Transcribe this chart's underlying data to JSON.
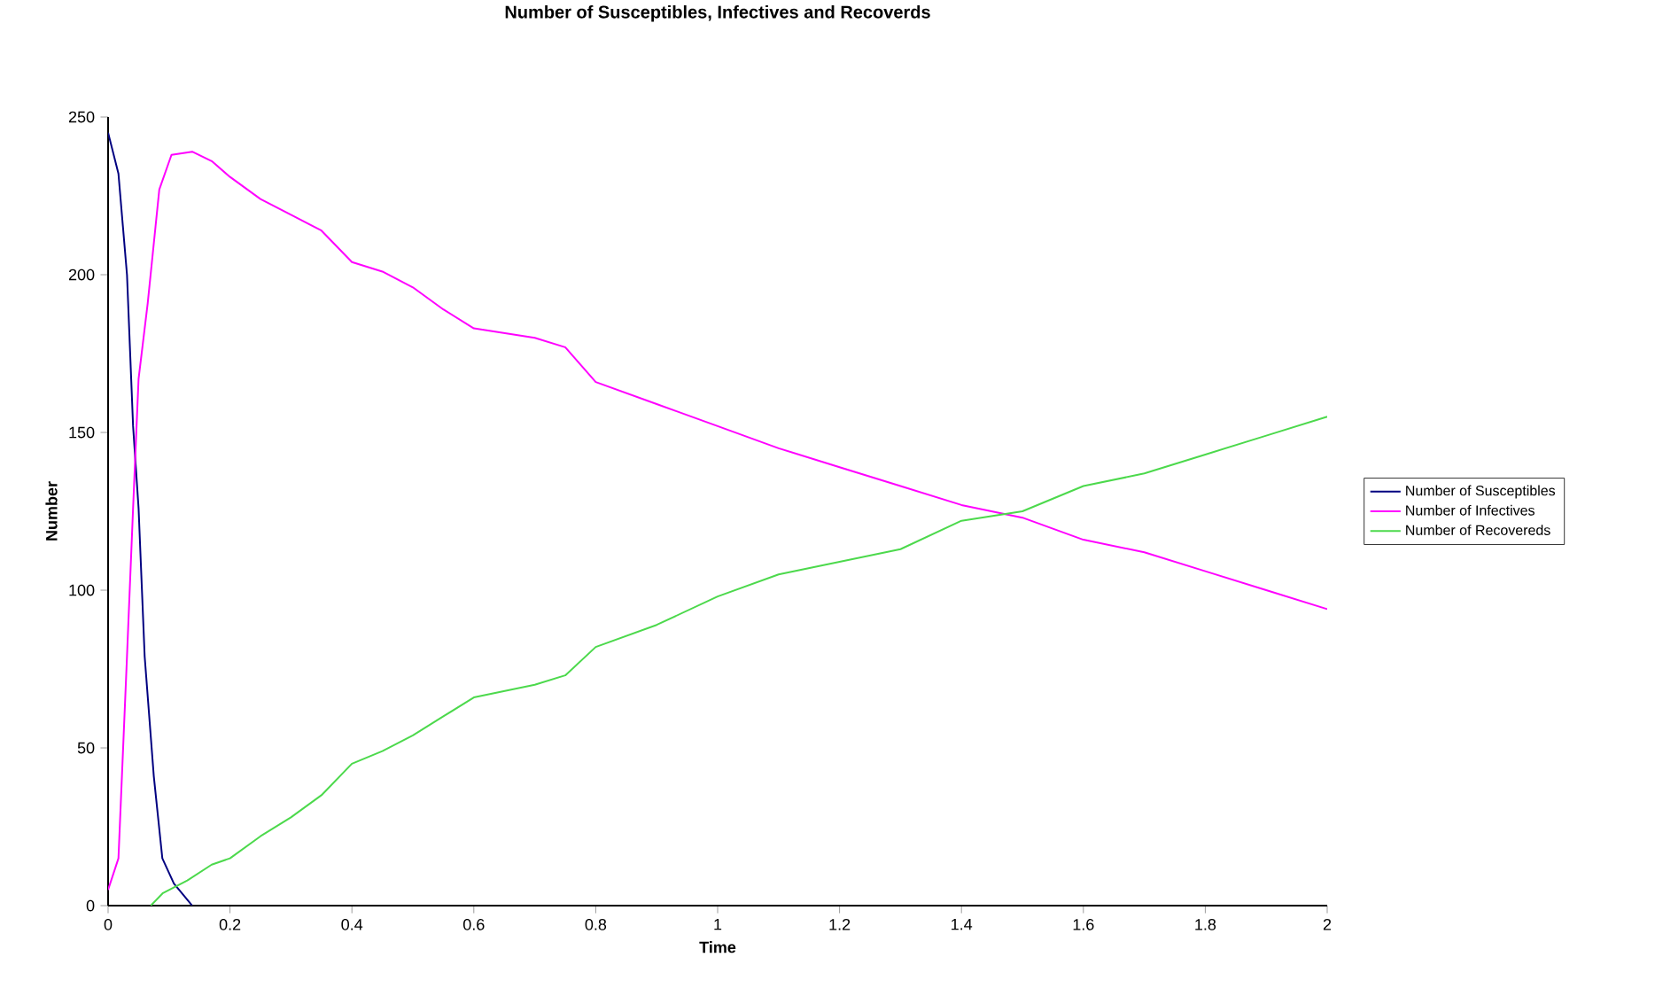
{
  "chart_data": {
    "type": "line",
    "title": "Number of Susceptibles, Infectives and Recoverds",
    "xlabel": "Time",
    "ylabel": "Number",
    "xlim": [
      0,
      2
    ],
    "ylim": [
      0,
      250
    ],
    "xticks": [
      0,
      0.2,
      0.4,
      0.6,
      0.8,
      1,
      1.2,
      1.4,
      1.6,
      1.8,
      2
    ],
    "yticks": [
      0,
      50,
      100,
      150,
      200,
      250
    ],
    "grid": false,
    "legend": "right",
    "marker": "none",
    "line_style": "solid",
    "series": [
      {
        "name": "Number of Susceptibles",
        "color": "#000080",
        "x": [
          0,
          0.017,
          0.031,
          0.041,
          0.05,
          0.06,
          0.075,
          0.089,
          0.108,
          0.138
        ],
        "values": [
          245,
          232,
          200,
          152,
          126,
          79,
          41,
          15,
          7,
          0
        ]
      },
      {
        "name": "Number of Infectives",
        "color": "#ff00ff",
        "x": [
          0,
          0.017,
          0.031,
          0.041,
          0.05,
          0.065,
          0.084,
          0.104,
          0.138,
          0.17,
          0.2,
          0.25,
          0.3,
          0.35,
          0.4,
          0.45,
          0.5,
          0.55,
          0.6,
          0.7,
          0.75,
          0.8,
          0.9,
          1.0,
          1.1,
          1.2,
          1.3,
          1.4,
          1.5,
          1.6,
          1.7,
          1.8,
          1.9,
          2.0
        ],
        "values": [
          5,
          15,
          79,
          126,
          167,
          191,
          227,
          238,
          239,
          236,
          231,
          224,
          219,
          214,
          204,
          201,
          196,
          189,
          183,
          180,
          177,
          166,
          159,
          152,
          145,
          139,
          133,
          127,
          123,
          116,
          112,
          106,
          100,
          94
        ]
      },
      {
        "name": "Number of Recovereds",
        "color": "#4cd94c",
        "x": [
          0.07,
          0.09,
          0.13,
          0.17,
          0.2,
          0.25,
          0.3,
          0.35,
          0.4,
          0.45,
          0.5,
          0.55,
          0.6,
          0.7,
          0.75,
          0.8,
          0.9,
          1.0,
          1.1,
          1.2,
          1.3,
          1.4,
          1.5,
          1.6,
          1.7,
          1.8,
          1.9,
          2.0
        ],
        "values": [
          0,
          4,
          8,
          13,
          15,
          22,
          28,
          35,
          45,
          49,
          54,
          60,
          66,
          70,
          73,
          82,
          89,
          98,
          105,
          109,
          113,
          122,
          125,
          133,
          137,
          143,
          149,
          155
        ]
      }
    ]
  }
}
